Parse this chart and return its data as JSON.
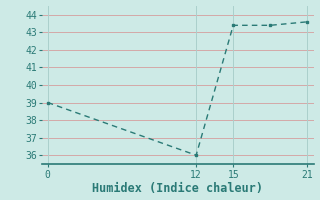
{
  "x": [
    0,
    12,
    15,
    18,
    21
  ],
  "y": [
    39,
    36,
    43.4,
    43.4,
    43.6
  ],
  "xlim": [
    -0.5,
    21.5
  ],
  "ylim": [
    35.5,
    44.5
  ],
  "yticks": [
    36,
    37,
    38,
    39,
    40,
    41,
    42,
    43,
    44
  ],
  "xticks": [
    0,
    12,
    15,
    21
  ],
  "xlabel": "Humidex (Indice chaleur)",
  "line_color": "#2a7a76",
  "bg_color": "#cdeae6",
  "grid_color_h": "#d4a8a8",
  "grid_color_v": "#aad0cc",
  "axis_color": "#2a7a76",
  "xlabel_fontsize": 8.5,
  "tick_fontsize": 7
}
